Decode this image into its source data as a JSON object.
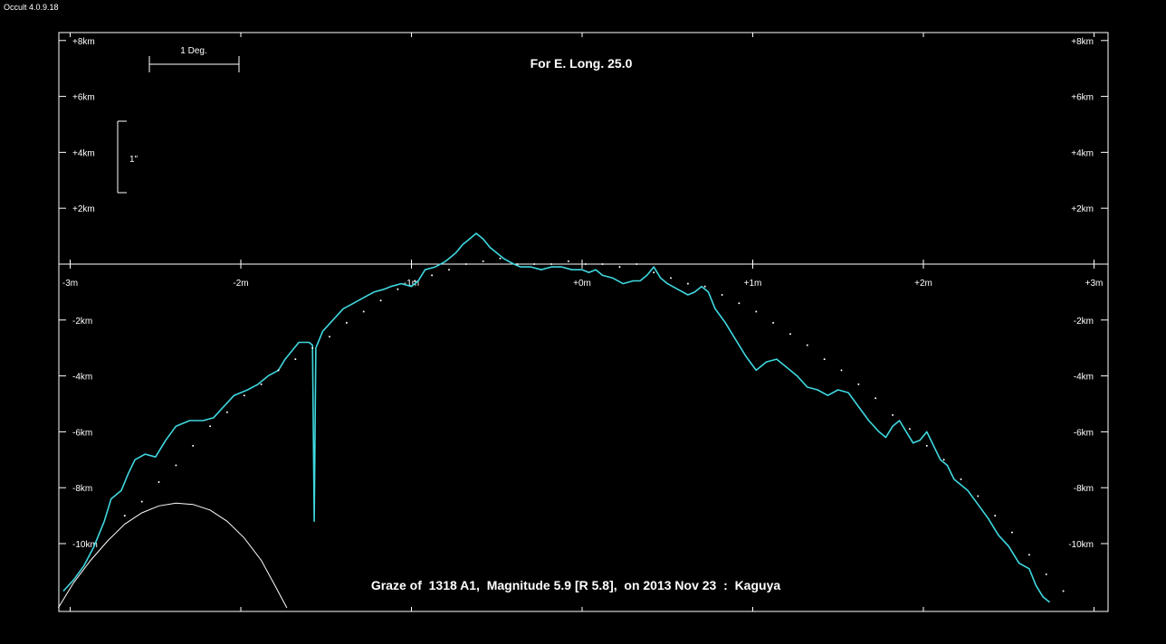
{
  "app": {
    "title": "Occult 4.0.9.18"
  },
  "chart_data": {
    "type": "line",
    "title": "For E. Long. 25.0",
    "caption": "Graze of  1318 A1,  Magnitude 5.9 [R 5.8],  on 2013 Nov 23  :  Kaguya",
    "scale_bar_h_label": "1 Deg.",
    "scale_bar_v_label": "1\"",
    "x_ticks": [
      {
        "v": -3,
        "label": "-3m"
      },
      {
        "v": -2,
        "label": "-2m"
      },
      {
        "v": -1,
        "label": "-1m"
      },
      {
        "v": 0,
        "label": "+0m"
      },
      {
        "v": 1,
        "label": "+1m"
      },
      {
        "v": 2,
        "label": "+2m"
      },
      {
        "v": 3,
        "label": "+3m"
      }
    ],
    "y_ticks": [
      {
        "v": 8,
        "label": "+8km"
      },
      {
        "v": 6,
        "label": "+6km"
      },
      {
        "v": 4,
        "label": "+4km"
      },
      {
        "v": 2,
        "label": "+2km"
      },
      {
        "v": -2,
        "label": "-2km"
      },
      {
        "v": -4,
        "label": "-4km"
      },
      {
        "v": -6,
        "label": "-6km"
      },
      {
        "v": -8,
        "label": "-8km"
      },
      {
        "v": -10,
        "label": "-10km"
      }
    ],
    "xlim": [
      -3.07,
      3.08
    ],
    "ylim": [
      -12.3,
      8.3
    ],
    "colors": {
      "profile": "#3fd8e0",
      "limb": "#ffffff",
      "axes": "#ffffff"
    },
    "series": [
      {
        "kind": "lunar-profile",
        "points": [
          [
            -3.04,
            -11.7
          ],
          [
            -2.98,
            -11.3
          ],
          [
            -2.92,
            -10.8
          ],
          [
            -2.86,
            -10.1
          ],
          [
            -2.8,
            -9.2
          ],
          [
            -2.76,
            -8.4
          ],
          [
            -2.7,
            -8.1
          ],
          [
            -2.66,
            -7.5
          ],
          [
            -2.62,
            -7.0
          ],
          [
            -2.56,
            -6.8
          ],
          [
            -2.5,
            -6.9
          ],
          [
            -2.44,
            -6.3
          ],
          [
            -2.38,
            -5.8
          ],
          [
            -2.3,
            -5.6
          ],
          [
            -2.22,
            -5.6
          ],
          [
            -2.16,
            -5.5
          ],
          [
            -2.1,
            -5.1
          ],
          [
            -2.04,
            -4.7
          ],
          [
            -1.96,
            -4.5
          ],
          [
            -1.9,
            -4.3
          ],
          [
            -1.84,
            -4.0
          ],
          [
            -1.78,
            -3.8
          ],
          [
            -1.74,
            -3.4
          ],
          [
            -1.7,
            -3.1
          ],
          [
            -1.66,
            -2.8
          ],
          [
            -1.6,
            -2.8
          ],
          [
            -1.58,
            -2.9
          ],
          [
            -1.57,
            -9.2
          ],
          [
            -1.56,
            -3.0
          ],
          [
            -1.52,
            -2.4
          ],
          [
            -1.46,
            -2.0
          ],
          [
            -1.4,
            -1.6
          ],
          [
            -1.34,
            -1.4
          ],
          [
            -1.28,
            -1.2
          ],
          [
            -1.22,
            -1.0
          ],
          [
            -1.16,
            -0.9
          ],
          [
            -1.12,
            -0.8
          ],
          [
            -1.06,
            -0.7
          ],
          [
            -1.0,
            -0.8
          ],
          [
            -0.96,
            -0.6
          ],
          [
            -0.92,
            -0.2
          ],
          [
            -0.86,
            -0.1
          ],
          [
            -0.8,
            0.1
          ],
          [
            -0.74,
            0.4
          ],
          [
            -0.7,
            0.7
          ],
          [
            -0.66,
            0.9
          ],
          [
            -0.62,
            1.1
          ],
          [
            -0.58,
            0.9
          ],
          [
            -0.54,
            0.6
          ],
          [
            -0.5,
            0.4
          ],
          [
            -0.46,
            0.2
          ],
          [
            -0.4,
            0.0
          ],
          [
            -0.36,
            -0.1
          ],
          [
            -0.3,
            -0.1
          ],
          [
            -0.24,
            -0.2
          ],
          [
            -0.18,
            -0.1
          ],
          [
            -0.12,
            -0.1
          ],
          [
            -0.06,
            -0.2
          ],
          [
            0.0,
            -0.2
          ],
          [
            0.04,
            -0.3
          ],
          [
            0.08,
            -0.2
          ],
          [
            0.12,
            -0.4
          ],
          [
            0.18,
            -0.5
          ],
          [
            0.24,
            -0.7
          ],
          [
            0.3,
            -0.6
          ],
          [
            0.34,
            -0.6
          ],
          [
            0.38,
            -0.4
          ],
          [
            0.42,
            -0.1
          ],
          [
            0.46,
            -0.5
          ],
          [
            0.5,
            -0.7
          ],
          [
            0.56,
            -0.9
          ],
          [
            0.62,
            -1.1
          ],
          [
            0.66,
            -1.0
          ],
          [
            0.7,
            -0.8
          ],
          [
            0.74,
            -1.0
          ],
          [
            0.78,
            -1.6
          ],
          [
            0.84,
            -2.1
          ],
          [
            0.9,
            -2.7
          ],
          [
            0.96,
            -3.3
          ],
          [
            1.02,
            -3.8
          ],
          [
            1.08,
            -3.5
          ],
          [
            1.14,
            -3.4
          ],
          [
            1.2,
            -3.7
          ],
          [
            1.26,
            -4.0
          ],
          [
            1.32,
            -4.4
          ],
          [
            1.38,
            -4.5
          ],
          [
            1.44,
            -4.7
          ],
          [
            1.5,
            -4.5
          ],
          [
            1.56,
            -4.6
          ],
          [
            1.62,
            -5.1
          ],
          [
            1.68,
            -5.6
          ],
          [
            1.74,
            -6.0
          ],
          [
            1.78,
            -6.2
          ],
          [
            1.82,
            -5.8
          ],
          [
            1.86,
            -5.6
          ],
          [
            1.9,
            -6.0
          ],
          [
            1.94,
            -6.4
          ],
          [
            1.98,
            -6.3
          ],
          [
            2.02,
            -6.0
          ],
          [
            2.06,
            -6.5
          ],
          [
            2.1,
            -7.0
          ],
          [
            2.14,
            -7.2
          ],
          [
            2.18,
            -7.7
          ],
          [
            2.22,
            -7.9
          ],
          [
            2.26,
            -8.1
          ],
          [
            2.32,
            -8.6
          ],
          [
            2.38,
            -9.1
          ],
          [
            2.44,
            -9.7
          ],
          [
            2.5,
            -10.1
          ],
          [
            2.56,
            -10.7
          ],
          [
            2.62,
            -10.9
          ],
          [
            2.66,
            -11.5
          ],
          [
            2.7,
            -11.9
          ],
          [
            2.74,
            -12.1
          ]
        ]
      },
      {
        "kind": "mean-limb-dots",
        "points": [
          [
            -2.68,
            -9.0
          ],
          [
            -2.58,
            -8.5
          ],
          [
            -2.48,
            -7.8
          ],
          [
            -2.38,
            -7.2
          ],
          [
            -2.28,
            -6.5
          ],
          [
            -2.18,
            -5.8
          ],
          [
            -2.08,
            -5.3
          ],
          [
            -1.98,
            -4.7
          ],
          [
            -1.88,
            -4.3
          ],
          [
            -1.78,
            -3.8
          ],
          [
            -1.68,
            -3.4
          ],
          [
            -1.58,
            -3.0
          ],
          [
            -1.48,
            -2.6
          ],
          [
            -1.38,
            -2.1
          ],
          [
            -1.28,
            -1.7
          ],
          [
            -1.18,
            -1.3
          ],
          [
            -1.08,
            -0.9
          ],
          [
            -0.98,
            -0.6
          ],
          [
            -0.88,
            -0.4
          ],
          [
            -0.78,
            -0.2
          ],
          [
            -0.68,
            0.0
          ],
          [
            -0.58,
            0.1
          ],
          [
            -0.48,
            0.2
          ],
          [
            -0.38,
            0.0
          ],
          [
            -0.28,
            0.0
          ],
          [
            -0.18,
            0.0
          ],
          [
            -0.08,
            0.1
          ],
          [
            0.02,
            0.0
          ],
          [
            0.12,
            0.0
          ],
          [
            0.22,
            -0.1
          ],
          [
            0.32,
            0.0
          ],
          [
            0.42,
            -0.3
          ],
          [
            0.52,
            -0.5
          ],
          [
            0.62,
            -0.7
          ],
          [
            0.72,
            -0.8
          ],
          [
            0.82,
            -1.1
          ],
          [
            0.92,
            -1.4
          ],
          [
            1.02,
            -1.7
          ],
          [
            1.12,
            -2.1
          ],
          [
            1.22,
            -2.5
          ],
          [
            1.32,
            -2.9
          ],
          [
            1.42,
            -3.4
          ],
          [
            1.52,
            -3.8
          ],
          [
            1.62,
            -4.3
          ],
          [
            1.72,
            -4.8
          ],
          [
            1.82,
            -5.4
          ],
          [
            1.92,
            -5.9
          ],
          [
            2.02,
            -6.5
          ],
          [
            2.12,
            -7.0
          ],
          [
            2.22,
            -7.7
          ],
          [
            2.32,
            -8.3
          ],
          [
            2.42,
            -9.0
          ],
          [
            2.52,
            -9.6
          ],
          [
            2.62,
            -10.4
          ],
          [
            2.72,
            -11.1
          ],
          [
            2.82,
            -11.7
          ]
        ]
      },
      {
        "kind": "star-track-arc",
        "points": [
          [
            -3.07,
            -12.3
          ],
          [
            -2.98,
            -11.4
          ],
          [
            -2.88,
            -10.6
          ],
          [
            -2.78,
            -9.9
          ],
          [
            -2.68,
            -9.3
          ],
          [
            -2.58,
            -8.9
          ],
          [
            -2.48,
            -8.65
          ],
          [
            -2.38,
            -8.55
          ],
          [
            -2.28,
            -8.6
          ],
          [
            -2.18,
            -8.8
          ],
          [
            -2.08,
            -9.2
          ],
          [
            -1.98,
            -9.8
          ],
          [
            -1.88,
            -10.6
          ],
          [
            -1.8,
            -11.5
          ],
          [
            -1.73,
            -12.3
          ]
        ]
      }
    ]
  }
}
